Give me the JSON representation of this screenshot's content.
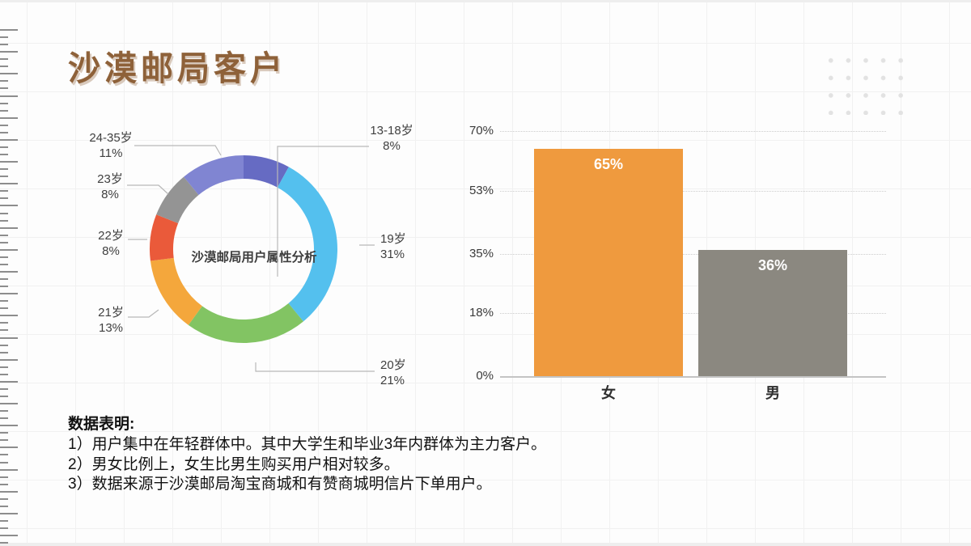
{
  "slide": {
    "title": "沙漠邮局客户",
    "notes_heading": "数据表明:",
    "notes": [
      "1）用户集中在年轻群体中。其中大学生和毕业3年内群体为主力客户。",
      "2）男女比例上，女生比男生购买用户相对较多。",
      "3）数据来源于沙漠邮局淘宝商城和有赞商城明信片下单用户。"
    ]
  },
  "colors": {
    "title_brown": "#8e6139",
    "grid_line": "#f1f1f1",
    "leader_line": "#b8b8b8",
    "bar_female": "#ef9a3e",
    "bar_male": "#8b8880"
  },
  "chart_data": [
    {
      "type": "pie",
      "subtype": "donut",
      "title": "沙漠邮局用户属性分析",
      "legend_position": "outside-callouts",
      "segments": [
        {
          "label": "13-18岁",
          "value": 8,
          "display": "8%",
          "color": "#666bc3"
        },
        {
          "label": "19岁",
          "value": 31,
          "display": "31%",
          "color": "#54c0ee"
        },
        {
          "label": "20岁",
          "value": 21,
          "display": "21%",
          "color": "#82c463"
        },
        {
          "label": "21岁",
          "value": 13,
          "display": "13%",
          "color": "#f4a73c"
        },
        {
          "label": "22岁",
          "value": 8,
          "display": "8%",
          "color": "#ea5a3a"
        },
        {
          "label": "23岁",
          "value": 8,
          "display": "8%",
          "color": "#949494"
        },
        {
          "label": "24-35岁",
          "value": 11,
          "display": "11%",
          "color": "#8085d2"
        }
      ]
    },
    {
      "type": "bar",
      "categories": [
        "女",
        "男"
      ],
      "values": [
        65,
        36
      ],
      "value_labels": [
        "65%",
        "36%"
      ],
      "colors": [
        "#ef9a3e",
        "#8b8880"
      ],
      "ylim": [
        0,
        70
      ],
      "grid": "dotted-horizontal",
      "yticks": [
        {
          "value": 0,
          "label": "0%"
        },
        {
          "value": 18,
          "label": "18%"
        },
        {
          "value": 35,
          "label": "35%"
        },
        {
          "value": 53,
          "label": "53%"
        },
        {
          "value": 70,
          "label": "70%"
        }
      ]
    }
  ]
}
